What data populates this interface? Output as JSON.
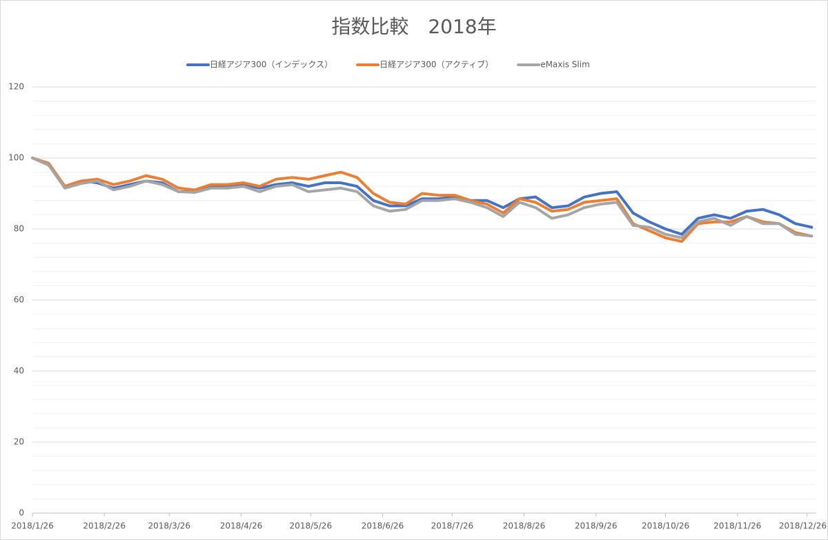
{
  "chart_data": {
    "type": "line",
    "title": "指数比較　2018年",
    "x": [
      "2018/1/26",
      "2018/2/2",
      "2018/2/9",
      "2018/2/16",
      "2018/2/23",
      "2018/3/2",
      "2018/3/9",
      "2018/3/16",
      "2018/3/23",
      "2018/3/30",
      "2018/4/6",
      "2018/4/13",
      "2018/4/20",
      "2018/4/27",
      "2018/5/4",
      "2018/5/11",
      "2018/5/18",
      "2018/5/25",
      "2018/6/1",
      "2018/6/8",
      "2018/6/15",
      "2018/6/22",
      "2018/6/29",
      "2018/7/6",
      "2018/7/13",
      "2018/7/20",
      "2018/7/27",
      "2018/8/3",
      "2018/8/10",
      "2018/8/17",
      "2018/8/24",
      "2018/8/31",
      "2018/9/7",
      "2018/9/14",
      "2018/9/21",
      "2018/9/28",
      "2018/10/5",
      "2018/10/12",
      "2018/10/19",
      "2018/10/26",
      "2018/11/2",
      "2018/11/9",
      "2018/11/16",
      "2018/11/23",
      "2018/11/30",
      "2018/12/7",
      "2018/12/14",
      "2018/12/21",
      "2018/12/28"
    ],
    "series": [
      {
        "name": "日経アジア300（インデックス）",
        "color": "#4472c4",
        "values": [
          100,
          98,
          92,
          93.5,
          93,
          91.5,
          92.5,
          93.5,
          93,
          90.5,
          90.5,
          92,
          92,
          92.5,
          91.5,
          92.5,
          93,
          92,
          93,
          93,
          92,
          88,
          86.5,
          86.5,
          88.5,
          88.5,
          89,
          88,
          88,
          86,
          88.5,
          89,
          86,
          86.5,
          89,
          90,
          90.5,
          84.5,
          82,
          80,
          78.5,
          83,
          84,
          83,
          85,
          85.5,
          84,
          81.5,
          80.5
        ]
      },
      {
        "name": "日経アジア300（アクティブ）",
        "color": "#ed7d31",
        "values": [
          100,
          98.5,
          92,
          93.5,
          94,
          92.5,
          93.5,
          95,
          94,
          91.5,
          91,
          92.5,
          92.5,
          93,
          92,
          94,
          94.5,
          94,
          95,
          96,
          94.5,
          90,
          87.5,
          87,
          90,
          89.5,
          89.5,
          88,
          87,
          84.5,
          88.5,
          87.5,
          85,
          85.5,
          87.5,
          88,
          88.5,
          81.5,
          79.5,
          77.5,
          76.5,
          81.5,
          82,
          82,
          83.5,
          82,
          81.5,
          79,
          78
        ]
      },
      {
        "name": "eMaxis Slim",
        "color": "#a5a5a5",
        "values": [
          100,
          98,
          91.5,
          92.8,
          93.5,
          91,
          92,
          93.5,
          92.5,
          90.5,
          90.3,
          91.5,
          91.5,
          92,
          90.5,
          92,
          92.5,
          90.5,
          91,
          91.5,
          90.5,
          86.5,
          85,
          85.5,
          88,
          88,
          88.5,
          87.5,
          86,
          83.5,
          87.5,
          86,
          83,
          84,
          86,
          87,
          87.5,
          81,
          80.5,
          78.5,
          77.5,
          82,
          83,
          81,
          83.5,
          81.5,
          81.5,
          78.5,
          78
        ]
      }
    ],
    "xlim": [
      "2018/1/26",
      "2018/12/30"
    ],
    "xticks": [
      "2018/1/26",
      "2018/2/26",
      "2018/3/26",
      "2018/4/26",
      "2018/5/26",
      "2018/6/26",
      "2018/7/26",
      "2018/8/26",
      "2018/9/26",
      "2018/10/26",
      "2018/11/26",
      "2018/12/26"
    ],
    "ylim": [
      0,
      120
    ],
    "yticks": [
      0,
      20,
      40,
      60,
      80,
      100,
      120
    ],
    "yminor": [
      4,
      8,
      12,
      16,
      24,
      28,
      32,
      36,
      44,
      48,
      52,
      56,
      64,
      68,
      72,
      76,
      84,
      88,
      92,
      96,
      104,
      108,
      112,
      116
    ],
    "grid": true,
    "legend": "top"
  }
}
